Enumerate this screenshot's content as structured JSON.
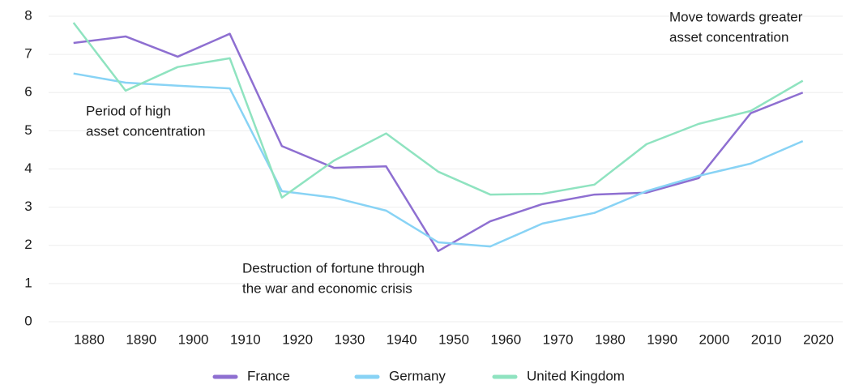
{
  "chart_data": {
    "type": "line",
    "x": [
      1877,
      1887,
      1897,
      1907,
      1917,
      1927,
      1937,
      1947,
      1957,
      1967,
      1977,
      1987,
      1997,
      2007,
      2017
    ],
    "series": [
      {
        "name": "France",
        "color": "#8e6fd1",
        "values": [
          7.3,
          7.47,
          6.94,
          7.54,
          4.6,
          4.03,
          4.07,
          1.85,
          2.63,
          3.08,
          3.33,
          3.38,
          3.76,
          5.46,
          6.0
        ]
      },
      {
        "name": "Germany",
        "color": "#88d3f5",
        "values": [
          6.5,
          6.26,
          6.18,
          6.11,
          3.42,
          3.25,
          2.91,
          2.08,
          1.97,
          2.57,
          2.85,
          3.42,
          3.82,
          4.14,
          4.73
        ]
      },
      {
        "name": "United Kingdom",
        "color": "#8fe3c0",
        "values": [
          7.83,
          6.05,
          6.67,
          6.9,
          3.25,
          4.22,
          4.93,
          3.93,
          3.33,
          3.35,
          3.59,
          4.65,
          5.18,
          5.52,
          6.31
        ]
      }
    ],
    "xlim": [
      1874,
      2024
    ],
    "xticks": [
      1880,
      1890,
      1900,
      1910,
      1920,
      1930,
      1940,
      1950,
      1960,
      1970,
      1980,
      1990,
      2000,
      2010,
      2020
    ],
    "ylim": [
      0,
      8
    ],
    "yticks": [
      0,
      1,
      2,
      3,
      4,
      5,
      6,
      7,
      8
    ],
    "grid": true,
    "legend": "bottom",
    "annotations": [
      {
        "lines": [
          "Period of high",
          "asset concentration"
        ]
      },
      {
        "lines": [
          "Destruction of fortune through",
          "the war and economic crisis"
        ]
      },
      {
        "lines": [
          "Move towards greater",
          "asset concentration"
        ]
      }
    ]
  }
}
